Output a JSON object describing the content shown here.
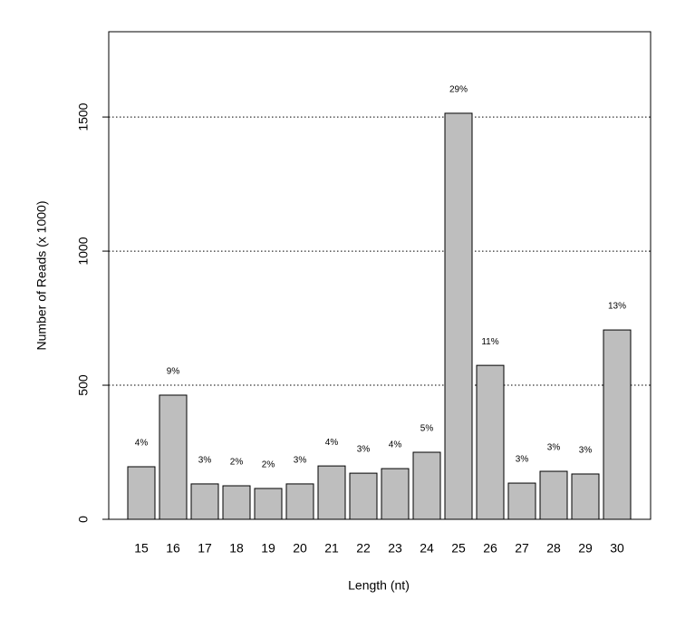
{
  "chart_data": {
    "type": "bar",
    "x_label": "Length (nt)",
    "y_label": "Number of Reads (x 1000)",
    "categories": [
      "15",
      "16",
      "17",
      "18",
      "19",
      "20",
      "21",
      "22",
      "23",
      "24",
      "25",
      "26",
      "27",
      "28",
      "29",
      "30"
    ],
    "values": [
      196,
      463,
      132,
      125,
      115,
      132,
      199,
      172,
      189,
      250,
      1514,
      574,
      135,
      179,
      169,
      706
    ],
    "bar_annotations": [
      "4%",
      "9%",
      "3%",
      "2%",
      "2%",
      "3%",
      "4%",
      "3%",
      "4%",
      "5%",
      "29%",
      "11%",
      "3%",
      "3%",
      "3%",
      "13%"
    ],
    "color": "#bebebe",
    "ylim": [
      0,
      1818
    ],
    "yticks": [
      0,
      500,
      1000,
      1500
    ],
    "grid": true
  }
}
